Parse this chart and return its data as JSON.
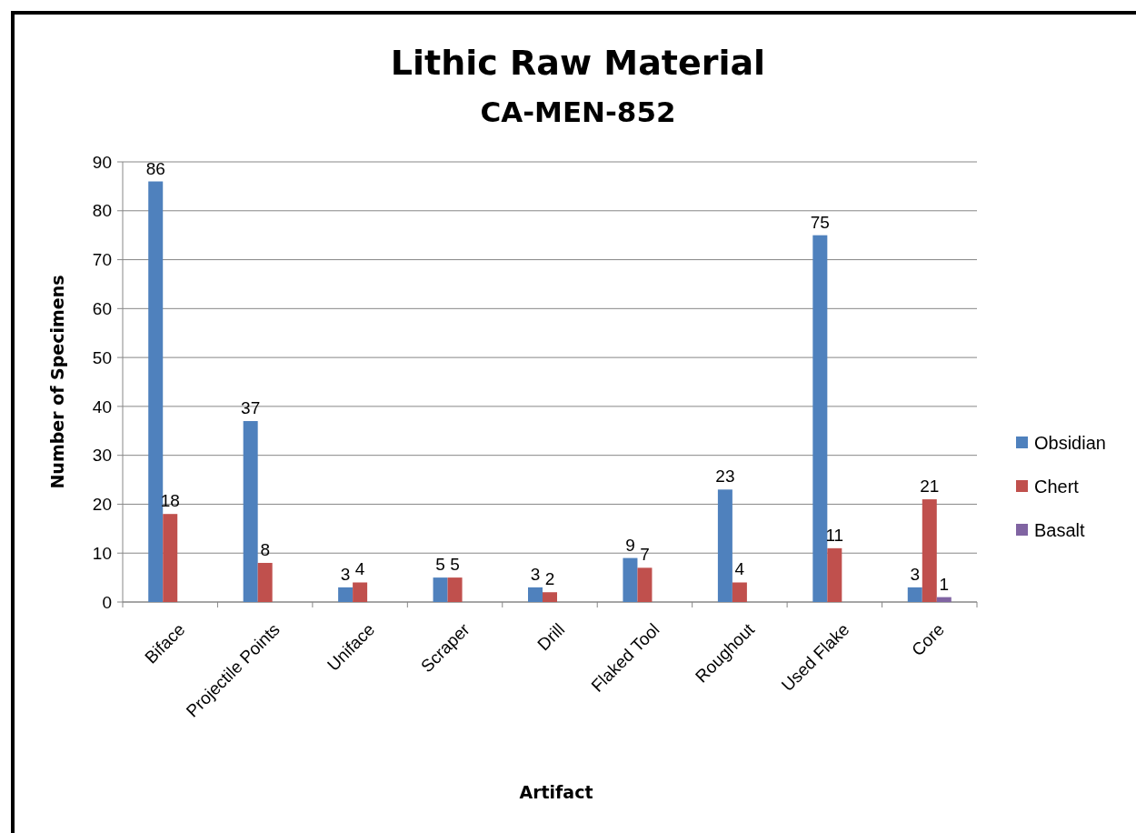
{
  "chart_data": {
    "type": "bar",
    "title": "Lithic Raw Material",
    "subtitle": "CA-MEN-852",
    "xlabel": "Artifact",
    "ylabel": "Number of Specimens",
    "categories": [
      "Biface",
      "Projectile Points",
      "Uniface",
      "Scraper",
      "Drill",
      "Flaked Tool",
      "Roughout",
      "Used Flake",
      "Core"
    ],
    "series": [
      {
        "name": "Obsidian",
        "color": "#4f81bd",
        "values": [
          86,
          37,
          3,
          5,
          3,
          9,
          23,
          75,
          3
        ]
      },
      {
        "name": "Chert",
        "color": "#c0504d",
        "values": [
          18,
          8,
          4,
          5,
          2,
          7,
          4,
          11,
          21
        ]
      },
      {
        "name": "Basalt",
        "color": "#8064a2",
        "values": [
          null,
          null,
          null,
          null,
          null,
          null,
          null,
          null,
          1
        ]
      }
    ],
    "ylim": [
      0,
      90
    ],
    "yticks": [
      0,
      10,
      20,
      30,
      40,
      50,
      60,
      70,
      80,
      90
    ],
    "grid": "y",
    "legend": "right",
    "data_labels": true
  }
}
